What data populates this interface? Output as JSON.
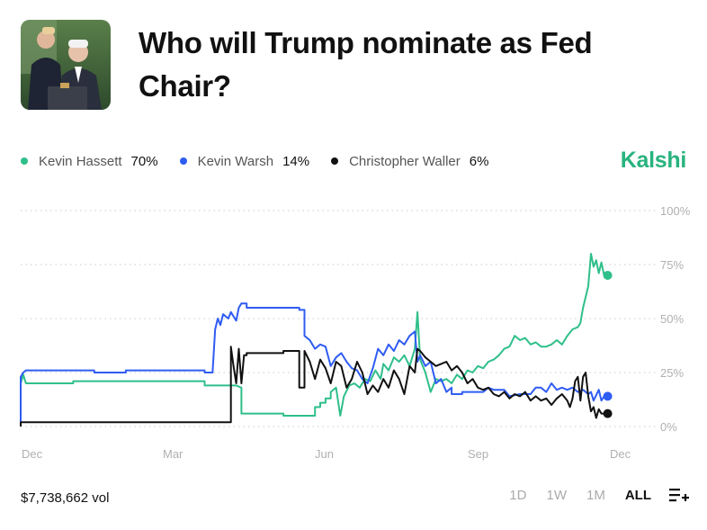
{
  "header": {
    "title": "Who will Trump nominate as Fed Chair?",
    "brand": "Kalshi"
  },
  "legend": [
    {
      "name": "Kevin Hassett",
      "value": "70%",
      "color": "#2fbf8a"
    },
    {
      "name": "Kevin Warsh",
      "value": "14%",
      "color": "#2f5cf2"
    },
    {
      "name": "Christopher Waller",
      "value": "6%",
      "color": "#111111"
    }
  ],
  "footer": {
    "volume": "$7,738,662 vol",
    "ranges": [
      {
        "label": "1D",
        "active": false
      },
      {
        "label": "1W",
        "active": false
      },
      {
        "label": "1M",
        "active": false
      },
      {
        "label": "ALL",
        "active": true
      }
    ],
    "list_icon": "playlist-add-icon"
  },
  "chart_data": {
    "type": "line",
    "x_ticks": [
      "Dec",
      "Mar",
      "Jun",
      "Sep",
      "Dec"
    ],
    "y_ticks": [
      "100%",
      "75%",
      "50%",
      "25%",
      "0%"
    ],
    "ylim": [
      0,
      100
    ],
    "grid": true,
    "series": [
      {
        "name": "Kevin Hassett",
        "color": "#2fbf8a",
        "points": [
          [
            0,
            0
          ],
          [
            0,
            20
          ],
          [
            0.5,
            24
          ],
          [
            1,
            20
          ],
          [
            10,
            20
          ],
          [
            10,
            21
          ],
          [
            35,
            21
          ],
          [
            35,
            19
          ],
          [
            41,
            19
          ],
          [
            42,
            18
          ],
          [
            42,
            6
          ],
          [
            50,
            6
          ],
          [
            50,
            5
          ],
          [
            55,
            5
          ],
          [
            56,
            5
          ],
          [
            56,
            9
          ],
          [
            57,
            9
          ],
          [
            57,
            11
          ],
          [
            58,
            11
          ],
          [
            58,
            13
          ],
          [
            59,
            13
          ],
          [
            59,
            16
          ],
          [
            60,
            18
          ],
          [
            60.8,
            5
          ],
          [
            61.5,
            14
          ],
          [
            62.5,
            19
          ],
          [
            63.5,
            20
          ],
          [
            64.5,
            18
          ],
          [
            65.5,
            22
          ],
          [
            66.5,
            21
          ],
          [
            67.5,
            26
          ],
          [
            68.5,
            22
          ],
          [
            69,
            29
          ],
          [
            70,
            26
          ],
          [
            71,
            32
          ],
          [
            72,
            30
          ],
          [
            73,
            33
          ],
          [
            74,
            28
          ],
          [
            75,
            36
          ],
          [
            75.5,
            53
          ],
          [
            76,
            31
          ],
          [
            77,
            25
          ],
          [
            78,
            16
          ],
          [
            79,
            22
          ],
          [
            80,
            21
          ],
          [
            81,
            22
          ],
          [
            82,
            20
          ],
          [
            83,
            24
          ],
          [
            84,
            22
          ],
          [
            85,
            26
          ],
          [
            86,
            25
          ],
          [
            87,
            28
          ],
          [
            88,
            27
          ],
          [
            89,
            30
          ],
          [
            90,
            31
          ],
          [
            91,
            33
          ],
          [
            92,
            36
          ],
          [
            93,
            37
          ],
          [
            94,
            42
          ],
          [
            95,
            40
          ],
          [
            96,
            41
          ],
          [
            97,
            38
          ],
          [
            98,
            39
          ],
          [
            99,
            37
          ],
          [
            100,
            37
          ],
          [
            101,
            38
          ],
          [
            102,
            40
          ],
          [
            103,
            38
          ],
          [
            104,
            42
          ],
          [
            105,
            45
          ],
          [
            106,
            46
          ],
          [
            106.5,
            48
          ],
          [
            107,
            55
          ],
          [
            108,
            65
          ],
          [
            108.5,
            80
          ],
          [
            109,
            74
          ],
          [
            109.5,
            77
          ],
          [
            110,
            71
          ],
          [
            110.5,
            76
          ],
          [
            111,
            70
          ]
        ]
      },
      {
        "name": "Kevin Warsh",
        "color": "#2f5cf2",
        "points": [
          [
            0,
            0
          ],
          [
            0,
            23
          ],
          [
            0.5,
            25
          ],
          [
            1,
            26
          ],
          [
            14,
            26
          ],
          [
            14,
            25
          ],
          [
            20,
            25
          ],
          [
            20,
            26
          ],
          [
            35,
            26
          ],
          [
            35,
            25
          ],
          [
            36.5,
            25
          ],
          [
            37,
            45
          ],
          [
            37.5,
            50
          ],
          [
            38,
            47
          ],
          [
            38.5,
            52
          ],
          [
            39.5,
            50
          ],
          [
            40,
            53
          ],
          [
            41,
            49
          ],
          [
            41.5,
            55
          ],
          [
            42,
            57
          ],
          [
            43,
            57
          ],
          [
            43,
            55
          ],
          [
            53,
            55
          ],
          [
            53,
            54
          ],
          [
            54,
            54
          ],
          [
            54,
            42
          ],
          [
            55,
            40
          ],
          [
            56,
            36
          ],
          [
            57,
            38
          ],
          [
            58,
            37
          ],
          [
            59,
            28
          ],
          [
            60,
            32
          ],
          [
            61,
            34
          ],
          [
            62,
            30
          ],
          [
            63,
            27
          ],
          [
            64,
            26
          ],
          [
            65,
            22
          ],
          [
            66,
            20
          ],
          [
            67,
            27
          ],
          [
            68,
            36
          ],
          [
            69,
            33
          ],
          [
            70,
            38
          ],
          [
            71,
            35
          ],
          [
            72,
            40
          ],
          [
            73,
            38
          ],
          [
            74,
            42
          ],
          [
            75,
            44
          ],
          [
            75.5,
            30
          ],
          [
            76,
            33
          ],
          [
            77,
            28
          ],
          [
            78,
            30
          ],
          [
            79,
            20
          ],
          [
            80,
            22
          ],
          [
            81,
            16
          ],
          [
            82,
            18
          ],
          [
            82,
            15
          ],
          [
            84,
            15
          ],
          [
            84,
            16
          ],
          [
            88,
            16
          ],
          [
            89,
            18
          ],
          [
            90,
            17
          ],
          [
            92,
            17
          ],
          [
            93,
            14
          ],
          [
            95,
            15
          ],
          [
            97,
            15
          ],
          [
            98,
            18
          ],
          [
            99,
            18
          ],
          [
            100,
            16
          ],
          [
            101,
            20
          ],
          [
            102,
            17
          ],
          [
            103,
            18
          ],
          [
            104,
            17
          ],
          [
            105,
            18
          ],
          [
            106,
            16
          ],
          [
            107,
            17
          ],
          [
            108,
            15
          ],
          [
            108.5,
            16
          ],
          [
            109,
            12
          ],
          [
            110,
            17
          ],
          [
            110.5,
            12
          ],
          [
            111,
            14
          ]
        ]
      },
      {
        "name": "Christopher Waller",
        "color": "#111111",
        "points": [
          [
            0,
            0
          ],
          [
            0,
            2
          ],
          [
            40,
            2
          ],
          [
            40,
            37
          ],
          [
            40.5,
            28
          ],
          [
            41,
            20
          ],
          [
            41.5,
            36
          ],
          [
            42,
            20
          ],
          [
            42.5,
            33
          ],
          [
            43,
            33
          ],
          [
            43,
            34
          ],
          [
            50,
            34
          ],
          [
            50,
            35
          ],
          [
            53,
            35
          ],
          [
            53,
            18
          ],
          [
            54,
            18
          ],
          [
            54,
            35
          ],
          [
            55,
            30
          ],
          [
            56,
            22
          ],
          [
            57,
            31
          ],
          [
            58,
            27
          ],
          [
            59,
            20
          ],
          [
            60,
            30
          ],
          [
            61,
            28
          ],
          [
            62,
            18
          ],
          [
            63,
            22
          ],
          [
            64,
            30
          ],
          [
            65,
            25
          ],
          [
            66,
            15
          ],
          [
            67,
            19
          ],
          [
            68,
            16
          ],
          [
            69,
            22
          ],
          [
            70,
            18
          ],
          [
            71,
            26
          ],
          [
            72,
            22
          ],
          [
            73,
            15
          ],
          [
            74,
            28
          ],
          [
            75,
            25
          ],
          [
            75.5,
            36
          ],
          [
            76,
            35
          ],
          [
            77,
            32
          ],
          [
            78,
            30
          ],
          [
            79,
            28
          ],
          [
            80,
            29
          ],
          [
            81,
            30
          ],
          [
            82,
            26
          ],
          [
            83,
            28
          ],
          [
            84,
            25
          ],
          [
            85,
            20
          ],
          [
            86,
            22
          ],
          [
            87,
            18
          ],
          [
            88,
            17
          ],
          [
            89,
            18
          ],
          [
            90,
            15
          ],
          [
            91,
            14
          ],
          [
            92,
            16
          ],
          [
            93,
            13
          ],
          [
            94,
            15
          ],
          [
            95,
            14
          ],
          [
            96,
            16
          ],
          [
            97,
            12
          ],
          [
            98,
            14
          ],
          [
            99,
            12
          ],
          [
            100,
            13
          ],
          [
            101,
            10
          ],
          [
            102,
            13
          ],
          [
            103,
            15
          ],
          [
            104,
            12
          ],
          [
            104.5,
            9
          ],
          [
            105,
            13
          ],
          [
            105.5,
            21
          ],
          [
            106,
            23
          ],
          [
            106.5,
            12
          ],
          [
            107,
            23
          ],
          [
            107.5,
            25
          ],
          [
            108,
            14
          ],
          [
            108.5,
            7
          ],
          [
            109,
            9
          ],
          [
            109.5,
            4
          ],
          [
            110,
            8
          ],
          [
            110.5,
            6
          ],
          [
            111,
            6
          ]
        ]
      }
    ]
  }
}
